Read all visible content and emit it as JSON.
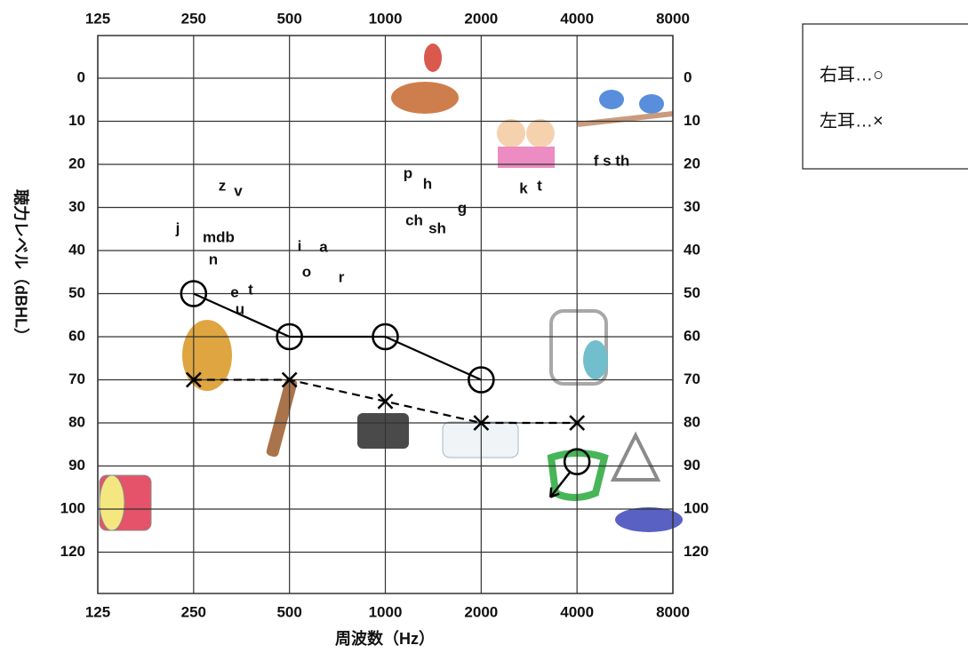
{
  "chart_data": {
    "type": "line",
    "x_label": "周波数（Hz）",
    "y_label": "聴力レベル（dBHL）",
    "x_scale": "log",
    "xlim": [
      125,
      8000
    ],
    "xticks": [
      125,
      250,
      500,
      1000,
      2000,
      4000,
      8000
    ],
    "ylim": [
      -10,
      130
    ],
    "y_inverted": true,
    "yticks": [
      0,
      10,
      20,
      30,
      40,
      50,
      60,
      70,
      80,
      90,
      100,
      120
    ],
    "grid": true,
    "legend_position": "right",
    "x": [
      250,
      500,
      1000,
      2000,
      4000
    ],
    "series": [
      {
        "name": "右耳…○",
        "marker": "circle",
        "line_style": "solid",
        "color": "#000000",
        "values": [
          50,
          60,
          60,
          70,
          89
        ],
        "scale_out": [
          false,
          false,
          false,
          false,
          true
        ]
      },
      {
        "name": "左耳…×",
        "marker": "cross",
        "line_style": "dashed",
        "color": "#000000",
        "values": [
          70,
          70,
          75,
          80,
          80
        ],
        "scale_out": [
          false,
          false,
          false,
          false,
          false
        ]
      }
    ],
    "annotations": [
      "z",
      "v",
      "j",
      "mdb",
      "n",
      "e",
      "t",
      "u",
      "i",
      "a",
      "o",
      "r",
      "p",
      "h",
      "ch",
      "sh",
      "g",
      "k",
      "t",
      "f s th"
    ]
  }
}
